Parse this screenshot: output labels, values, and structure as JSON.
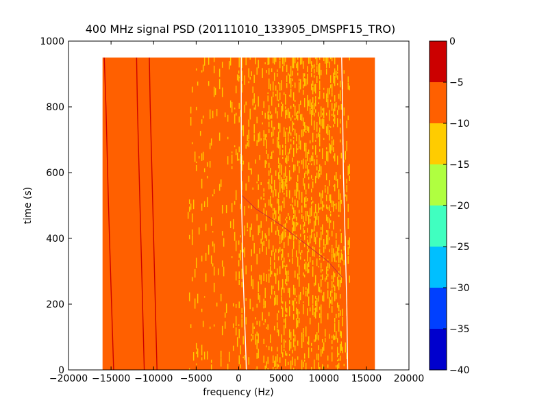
{
  "chart_data": {
    "type": "heatmap",
    "title": "400 MHz signal PSD (20111010_133905_DMSPF15_TRO)",
    "xlabel": "frequency (Hz)",
    "ylabel": "time (s)",
    "xlim": [
      -20000,
      20000
    ],
    "ylim": [
      0,
      1000
    ],
    "x_ticks": [
      -20000,
      -15000,
      -10000,
      -5000,
      0,
      5000,
      10000,
      15000,
      20000
    ],
    "x_tick_labels": [
      "−20000",
      "−15000",
      "−10000",
      "−5000",
      "0",
      "5000",
      "10000",
      "15000",
      "20000"
    ],
    "y_ticks": [
      0,
      200,
      400,
      600,
      800,
      1000
    ],
    "y_tick_labels": [
      "0",
      "200",
      "400",
      "600",
      "800",
      "1000"
    ],
    "data_extent": {
      "x": [
        -16000,
        16000
      ],
      "y": [
        0,
        950
      ]
    },
    "background_level": -7.5,
    "colorbar": {
      "levels": [
        -40,
        -35,
        -30,
        -25,
        -20,
        -15,
        -10,
        -5,
        0
      ],
      "tick_labels": [
        "−40",
        "−35",
        "−30",
        "−25",
        "−20",
        "−15",
        "−10",
        "−5",
        "0"
      ],
      "colors": [
        "#0000cd",
        "#0040ff",
        "#00bfff",
        "#40ffc0",
        "#b0ff40",
        "#ffcc00",
        "#ff6000",
        "#cc0000"
      ]
    },
    "striation_bands": [
      {
        "x_start": -6000,
        "x_end": 0,
        "density": 0.1
      },
      {
        "x_start": 0,
        "x_end": 3500,
        "density": 0.22
      },
      {
        "x_start": 3500,
        "x_end": 12000,
        "density": 0.42
      },
      {
        "x_start": 12000,
        "x_end": 13000,
        "density": 0.12
      }
    ],
    "traces": [
      {
        "name": "",
        "color": "#cc0000",
        "points": [
          [
            -15800,
            950
          ],
          [
            -15600,
            800
          ],
          [
            -15300,
            500
          ],
          [
            -15000,
            250
          ],
          [
            -14700,
            0
          ]
        ]
      },
      {
        "name": "",
        "color": "#cc0000",
        "points": [
          [
            -12000,
            950
          ],
          [
            -11900,
            800
          ],
          [
            -11700,
            600
          ],
          [
            -11400,
            300
          ],
          [
            -11100,
            0
          ]
        ]
      },
      {
        "name": "",
        "color": "#cc0000",
        "points": [
          [
            -10500,
            950
          ],
          [
            -10400,
            800
          ],
          [
            -10200,
            600
          ],
          [
            -9900,
            300
          ],
          [
            -9600,
            0
          ]
        ]
      },
      {
        "name": "",
        "color": "#ffffff",
        "points": [
          [
            300,
            950
          ],
          [
            300,
            600
          ],
          [
            350,
            500
          ],
          [
            500,
            300
          ],
          [
            700,
            150
          ],
          [
            900,
            0
          ]
        ]
      },
      {
        "name": "",
        "color": "#ffffff",
        "points": [
          [
            12100,
            950
          ],
          [
            12200,
            800
          ],
          [
            12300,
            600
          ],
          [
            12500,
            400
          ],
          [
            12700,
            200
          ],
          [
            12800,
            0
          ]
        ]
      },
      {
        "name": "",
        "color": "#cc3030",
        "points": [
          [
            400,
            530
          ],
          [
            2000,
            490
          ],
          [
            5000,
            440
          ],
          [
            8000,
            380
          ],
          [
            10500,
            330
          ],
          [
            12200,
            280
          ]
        ]
      }
    ]
  }
}
